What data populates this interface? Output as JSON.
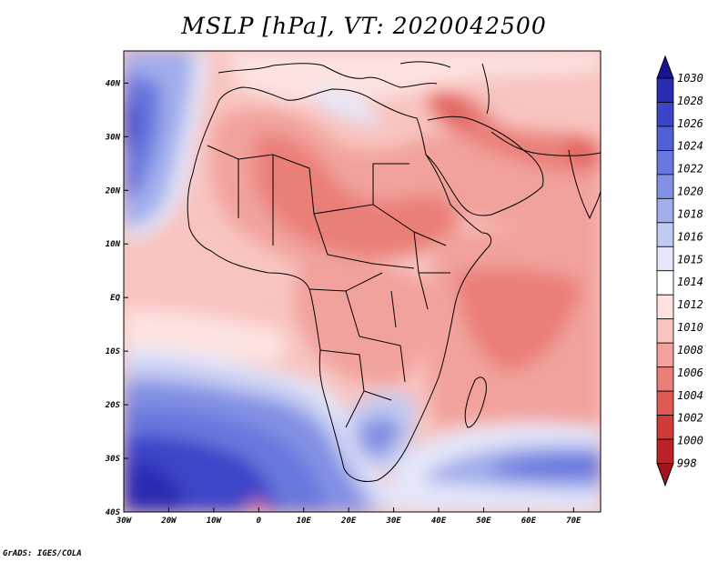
{
  "title": "MSLP [hPa], VT: 2020042500",
  "credit": "GrADS: IGES/COLA",
  "map": {
    "lon_range": [
      -30,
      76
    ],
    "lat_range": [
      -40,
      46
    ],
    "x_ticks": [
      "30W",
      "20W",
      "10W",
      "0",
      "10E",
      "20E",
      "30E",
      "40E",
      "50E",
      "60E",
      "70E"
    ],
    "x_tick_lons": [
      -30,
      -20,
      -10,
      0,
      10,
      20,
      30,
      40,
      50,
      60,
      70
    ],
    "y_ticks": [
      "40N",
      "30N",
      "20N",
      "10N",
      "EQ",
      "10S",
      "20S",
      "30S",
      "40S"
    ],
    "y_tick_lats": [
      40,
      30,
      20,
      10,
      0,
      -10,
      -20,
      -30,
      -40
    ]
  },
  "colorbar": {
    "labels": [
      "1030",
      "1028",
      "1026",
      "1024",
      "1022",
      "1020",
      "1018",
      "1016",
      "1015",
      "1014",
      "1012",
      "1010",
      "1008",
      "1006",
      "1004",
      "1002",
      "1000",
      "998"
    ],
    "colors": [
      "#1a1490",
      "#2a2cb2",
      "#3c44c8",
      "#5060d6",
      "#6777dd",
      "#8290e4",
      "#a2adec",
      "#c3caf2",
      "#e4e6f9",
      "#ffffff",
      "#fde2e0",
      "#f8c4c0",
      "#f2a29c",
      "#ea7f78",
      "#e05a55",
      "#d03a38",
      "#bb2328",
      "#a5141c"
    ]
  }
}
